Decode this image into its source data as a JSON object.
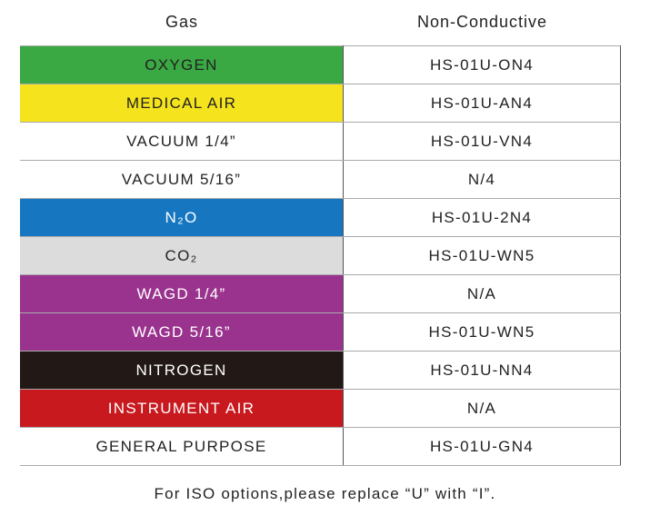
{
  "table": {
    "header": [
      "Gas",
      "Non-Conductive"
    ],
    "rows": [
      [
        "OXYGEN",
        "HS-01U-ON4"
      ],
      [
        "MEDICAL AIR",
        "HS-01U-AN4"
      ],
      [
        "VACUUM 1/4”",
        "HS-01U-VN4"
      ],
      [
        "VACUUM 5/16”",
        "N/4"
      ],
      [
        "N₂O",
        "HS-01U-2N4"
      ],
      [
        "CO₂",
        "HS-01U-WN5"
      ],
      [
        "WAGD 1/4”",
        "N/A"
      ],
      [
        "WAGD 5/16”",
        "HS-01U-WN5"
      ],
      [
        "NITROGEN",
        "HS-01U-NN4"
      ],
      [
        "INSTRUMENT AIR",
        "N/A"
      ],
      [
        "GENERAL PURPOSE",
        "HS-01U-GN4"
      ]
    ]
  },
  "footer": "For ISO options,please replace “U” with “I”."
}
